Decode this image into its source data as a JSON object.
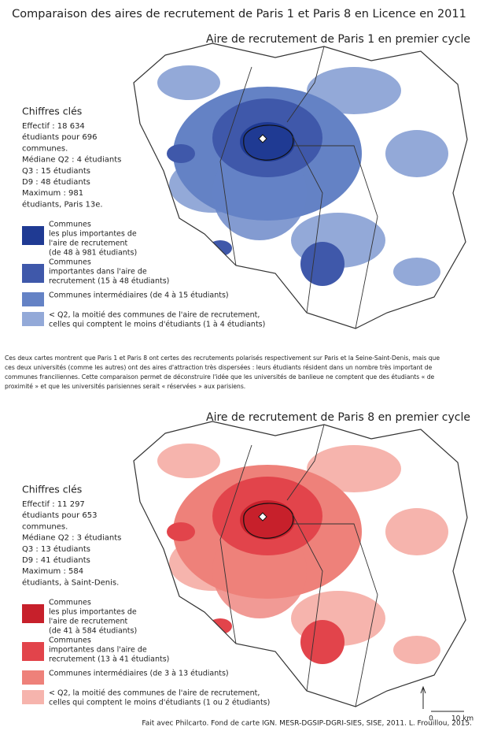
{
  "title": "Comparaison des aires de recrutement de Paris 1 et Paris 8 en Licence en 2011",
  "maps": [
    {
      "title": "Aire de recrutement de Paris 1 en premier cycle",
      "key_figures": {
        "heading": "Chiffres clés",
        "lines": [
          "Effectif : 18 634",
          "étudiants pour 696",
          "communes.",
          "Médiane Q2 : 4 étudiants",
          "Q3 : 15 étudiants",
          "D9 : 48 étudiants",
          "Maximum : 981",
          "étudiants, Paris 13e."
        ]
      },
      "legend": [
        {
          "lines": [
            "Communes",
            "les plus importantes de",
            "l'aire de recrutement",
            "(de 48 à 981 étudiants)"
          ],
          "color": "#1f3a93"
        },
        {
          "lines": [
            "Communes",
            "importantes dans l'aire de",
            "recrutement (15 à 48 étudiants)"
          ],
          "color": "#3f58aa"
        },
        {
          "lines": [
            "Communes intermédiaires (de 4 à 15 étudiants)"
          ],
          "color": "#6482c5"
        },
        {
          "lines": [
            "< Q2, la moitié des communes de l'aire de recrutement,",
            "celles qui comptent le moins d'étudiants (1 à 4 étudiants)"
          ],
          "color": "#93a9d8"
        }
      ]
    },
    {
      "title": "Aire de recrutement de Paris 8 en premier cycle",
      "key_figures": {
        "heading": "Chiffres clés",
        "lines": [
          "Effectif : 11 297",
          "étudiants pour 653",
          "communes.",
          "Médiane Q2 : 3 étudiants",
          "Q3 : 13 étudiants",
          "D9 : 41 étudiants",
          "Maximum : 584",
          "étudiants, à Saint-Denis."
        ]
      },
      "legend": [
        {
          "lines": [
            "Communes",
            "les plus importantes de",
            "l'aire de recrutement",
            "(de 41 à 584 étudiants)"
          ],
          "color": "#c7202b"
        },
        {
          "lines": [
            "Communes",
            "importantes dans l'aire de",
            "recrutement (13 à 41 étudiants)"
          ],
          "color": "#e2444b"
        },
        {
          "lines": [
            "Communes intermédiaires (de 3 à 13 étudiants)"
          ],
          "color": "#ee817a"
        },
        {
          "lines": [
            "< Q2, la moitié des communes de l'aire de recrutement,",
            "celles qui comptent le moins d'étudiants (1 ou 2 étudiants)"
          ],
          "color": "#f6b4ad"
        }
      ]
    }
  ],
  "text": [
    "Ces deux cartes montrent que Paris 1 et Paris 8 ont certes des recrutements polarisés respectivement sur Paris et la Seine-Saint-Denis, mais que",
    "ces deux universités (comme les autres) ont des aires d'attraction très dispersées : leurs étudiants résident dans un nombre très important de",
    "communes franciliennes. Cette comparaison permet de déconstruire l'idée que les universités de banlieue ne comptent que des étudiants « de",
    "proximité » et que les universités parisiennes serait « réservées » aux parisiens."
  ],
  "scale": {
    "start": "0",
    "end": "10 km"
  },
  "credits": "Fait avec Philcarto. Fond de carte IGN. MESR-DGSIP-DGRI-SIES, SISE, 2011. L. Frouillou, 2015."
}
